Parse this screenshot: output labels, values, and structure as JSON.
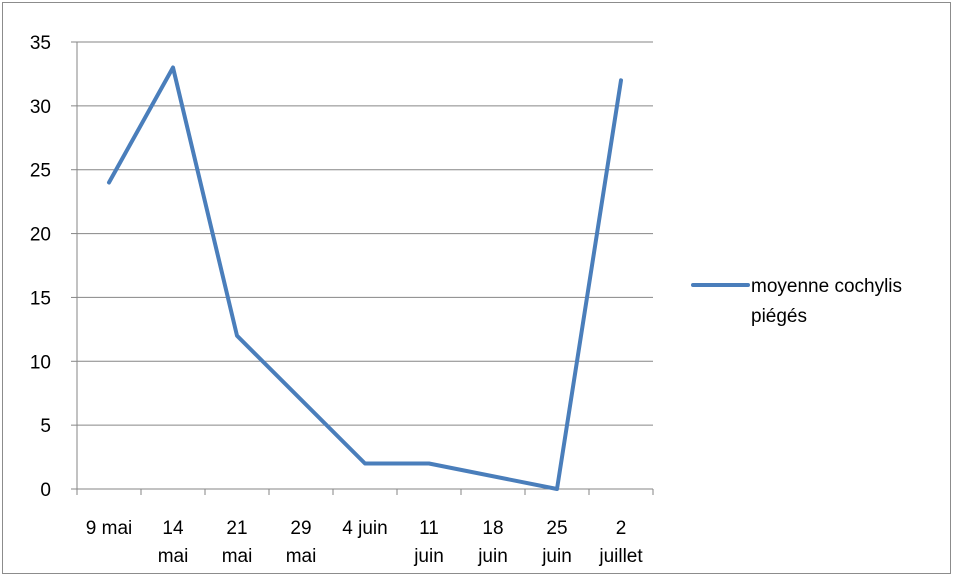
{
  "chart_data": {
    "type": "line",
    "categories": [
      [
        "9 mai"
      ],
      [
        "14",
        "mai"
      ],
      [
        "21",
        "mai"
      ],
      [
        "29",
        "mai"
      ],
      [
        "4 juin"
      ],
      [
        "11",
        "juin"
      ],
      [
        "18",
        "juin"
      ],
      [
        "25",
        "juin"
      ],
      [
        "2",
        "juillet"
      ]
    ],
    "series": [
      {
        "name": "moyenne cochylis piégés",
        "values": [
          24,
          33,
          12,
          null,
          2,
          2,
          null,
          0,
          32
        ],
        "color": "#4a7ebb"
      }
    ],
    "title": "",
    "xlabel": "",
    "ylabel": "",
    "ylim": [
      0,
      35
    ],
    "yticks": [
      0,
      5,
      10,
      15,
      20,
      25,
      30,
      35
    ],
    "grid": true,
    "legend": {
      "position": "right",
      "lines": [
        "moyenne cochylis",
        "piégés"
      ]
    },
    "gridline_color": "#868686",
    "axis_color": "#868686"
  }
}
